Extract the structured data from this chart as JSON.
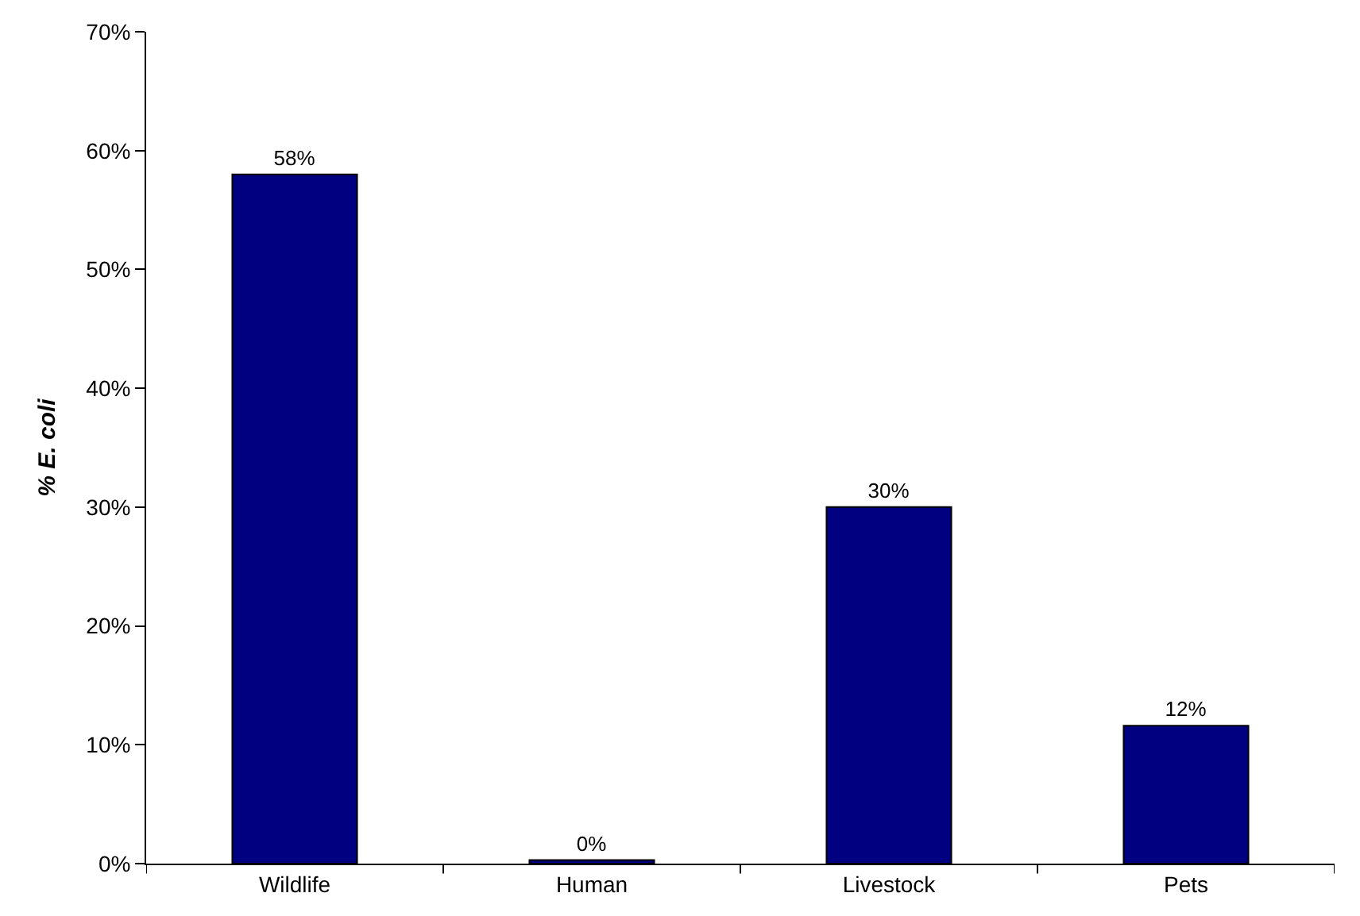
{
  "chart_data": {
    "type": "bar",
    "ylabel": "% E. coli",
    "categories": [
      "Wildlife",
      "Human",
      "Livestock",
      "Pets"
    ],
    "values": [
      58,
      0.3,
      30,
      11.6
    ],
    "value_labels": [
      "58%",
      "0%",
      "30%",
      "12%"
    ],
    "color": "#000080",
    "ylim": [
      0,
      70
    ],
    "yticks": [
      {
        "value": 0,
        "label": "0%"
      },
      {
        "value": 10,
        "label": "10%"
      },
      {
        "value": 20,
        "label": "20%"
      },
      {
        "value": 30,
        "label": "30%"
      },
      {
        "value": 40,
        "label": "40%"
      },
      {
        "value": 50,
        "label": "50%"
      },
      {
        "value": 60,
        "label": "60%"
      },
      {
        "value": 70,
        "label": "70%"
      }
    ],
    "legend": false
  }
}
